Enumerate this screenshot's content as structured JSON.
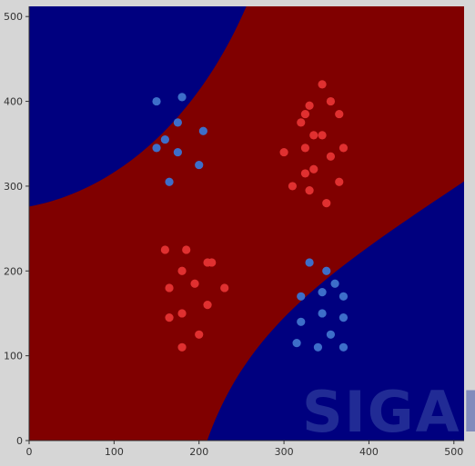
{
  "chart_data": {
    "type": "scatter",
    "title": "",
    "xlabel": "",
    "ylabel": "",
    "xlim": [
      0,
      512
    ],
    "ylim": [
      0,
      512
    ],
    "x_ticks": [
      "0",
      "100",
      "200",
      "300",
      "400",
      "500"
    ],
    "y_ticks": [
      "0",
      "100",
      "200",
      "300",
      "400",
      "500"
    ],
    "grid": false,
    "legend": "none",
    "background_regions": {
      "outer_class_color": "#00007f",
      "middle_band_color": "#800000"
    },
    "series": [
      {
        "color": "#e03030",
        "points": [
          [
            345,
            420
          ],
          [
            330,
            395
          ],
          [
            355,
            400
          ],
          [
            325,
            385
          ],
          [
            365,
            385
          ],
          [
            320,
            375
          ],
          [
            335,
            360
          ],
          [
            345,
            360
          ],
          [
            300,
            340
          ],
          [
            325,
            345
          ],
          [
            370,
            345
          ],
          [
            355,
            335
          ],
          [
            335,
            320
          ],
          [
            325,
            315
          ],
          [
            310,
            300
          ],
          [
            365,
            305
          ],
          [
            330,
            295
          ],
          [
            350,
            280
          ],
          [
            160,
            225
          ],
          [
            185,
            225
          ],
          [
            210,
            210
          ],
          [
            215,
            210
          ],
          [
            180,
            200
          ],
          [
            195,
            185
          ],
          [
            165,
            180
          ],
          [
            230,
            180
          ],
          [
            210,
            160
          ],
          [
            180,
            150
          ],
          [
            165,
            145
          ],
          [
            200,
            125
          ],
          [
            180,
            110
          ]
        ]
      },
      {
        "color": "#3d6ec9",
        "points": [
          [
            150,
            400
          ],
          [
            180,
            405
          ],
          [
            175,
            375
          ],
          [
            205,
            365
          ],
          [
            160,
            355
          ],
          [
            150,
            345
          ],
          [
            175,
            340
          ],
          [
            200,
            325
          ],
          [
            165,
            305
          ],
          [
            330,
            210
          ],
          [
            350,
            200
          ],
          [
            360,
            185
          ],
          [
            345,
            175
          ],
          [
            320,
            170
          ],
          [
            370,
            170
          ],
          [
            345,
            150
          ],
          [
            370,
            145
          ],
          [
            320,
            140
          ],
          [
            355,
            125
          ],
          [
            315,
            115
          ],
          [
            340,
            110
          ],
          [
            370,
            110
          ]
        ]
      }
    ]
  },
  "watermark": {
    "text": "SIGAI"
  }
}
